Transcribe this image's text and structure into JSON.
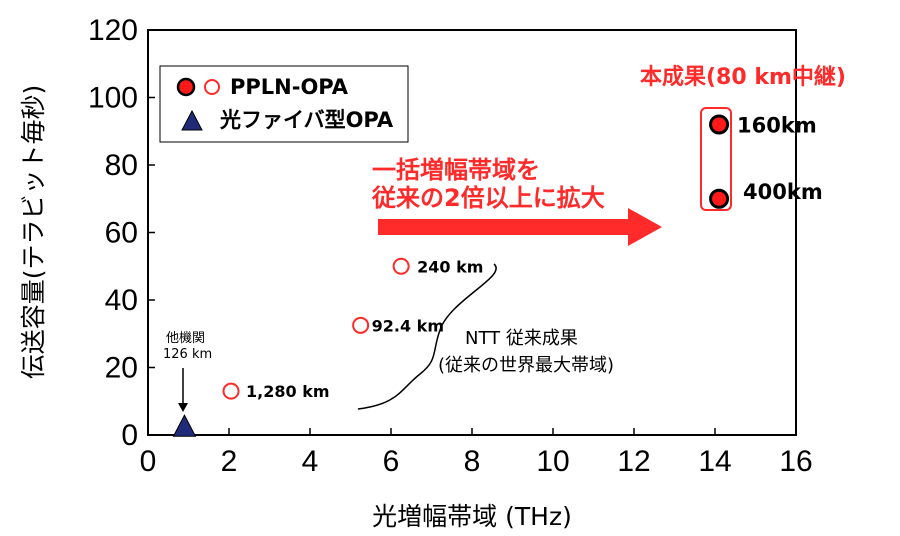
{
  "chart_data": {
    "type": "scatter",
    "xlabel": "光増幅帯域 (THz)",
    "ylabel": "伝送容量(テラビット毎秒)",
    "xlim": [
      0,
      16
    ],
    "ylim": [
      0,
      120
    ],
    "x_ticks": [
      "0",
      "2",
      "4",
      "6",
      "8",
      "10",
      "12",
      "14",
      "16"
    ],
    "y_ticks": [
      "0",
      "20",
      "40",
      "60",
      "80",
      "100",
      "120"
    ],
    "legend_position": "top-left",
    "legend": [
      {
        "label": "PPLN-OPA",
        "marker": "filled-circle + hollow-circle"
      },
      {
        "label": "光ファイバ型OPA",
        "marker": "triangle"
      }
    ],
    "series": [
      {
        "name": "PPLN-OPA",
        "marker": "filled-circle",
        "points": [
          {
            "x": 14.1,
            "y": 92,
            "label": "160km"
          },
          {
            "x": 14.1,
            "y": 70,
            "label": "400km"
          }
        ]
      },
      {
        "name": "PPLN-OPA",
        "marker": "hollow-circle",
        "points": [
          {
            "x": 2.05,
            "y": 13,
            "label": "1,280 km"
          },
          {
            "x": 5.25,
            "y": 32.5,
            "label": "92.4 km"
          },
          {
            "x": 6.25,
            "y": 50,
            "label": "240 km"
          }
        ]
      },
      {
        "name": "光ファイバ型OPA",
        "marker": "triangle",
        "points": [
          {
            "x": 0.9,
            "y": 2,
            "label": "126 km"
          }
        ]
      }
    ],
    "annotations": {
      "result_title": "本成果(80 km中継)",
      "arrow_text_line1": "一括増幅帯域を",
      "arrow_text_line2": "従来の2倍以上に拡大",
      "ntt_line1": "NTT 従来成果",
      "ntt_line2": "(従来の世界最大帯域)",
      "other_org": "他機関",
      "other_org_dist": "126 km"
    },
    "colors": {
      "accent_red": "#ff2a2a",
      "filled_marker": "#ff1a1a",
      "triangle": "#1f2a78"
    }
  }
}
